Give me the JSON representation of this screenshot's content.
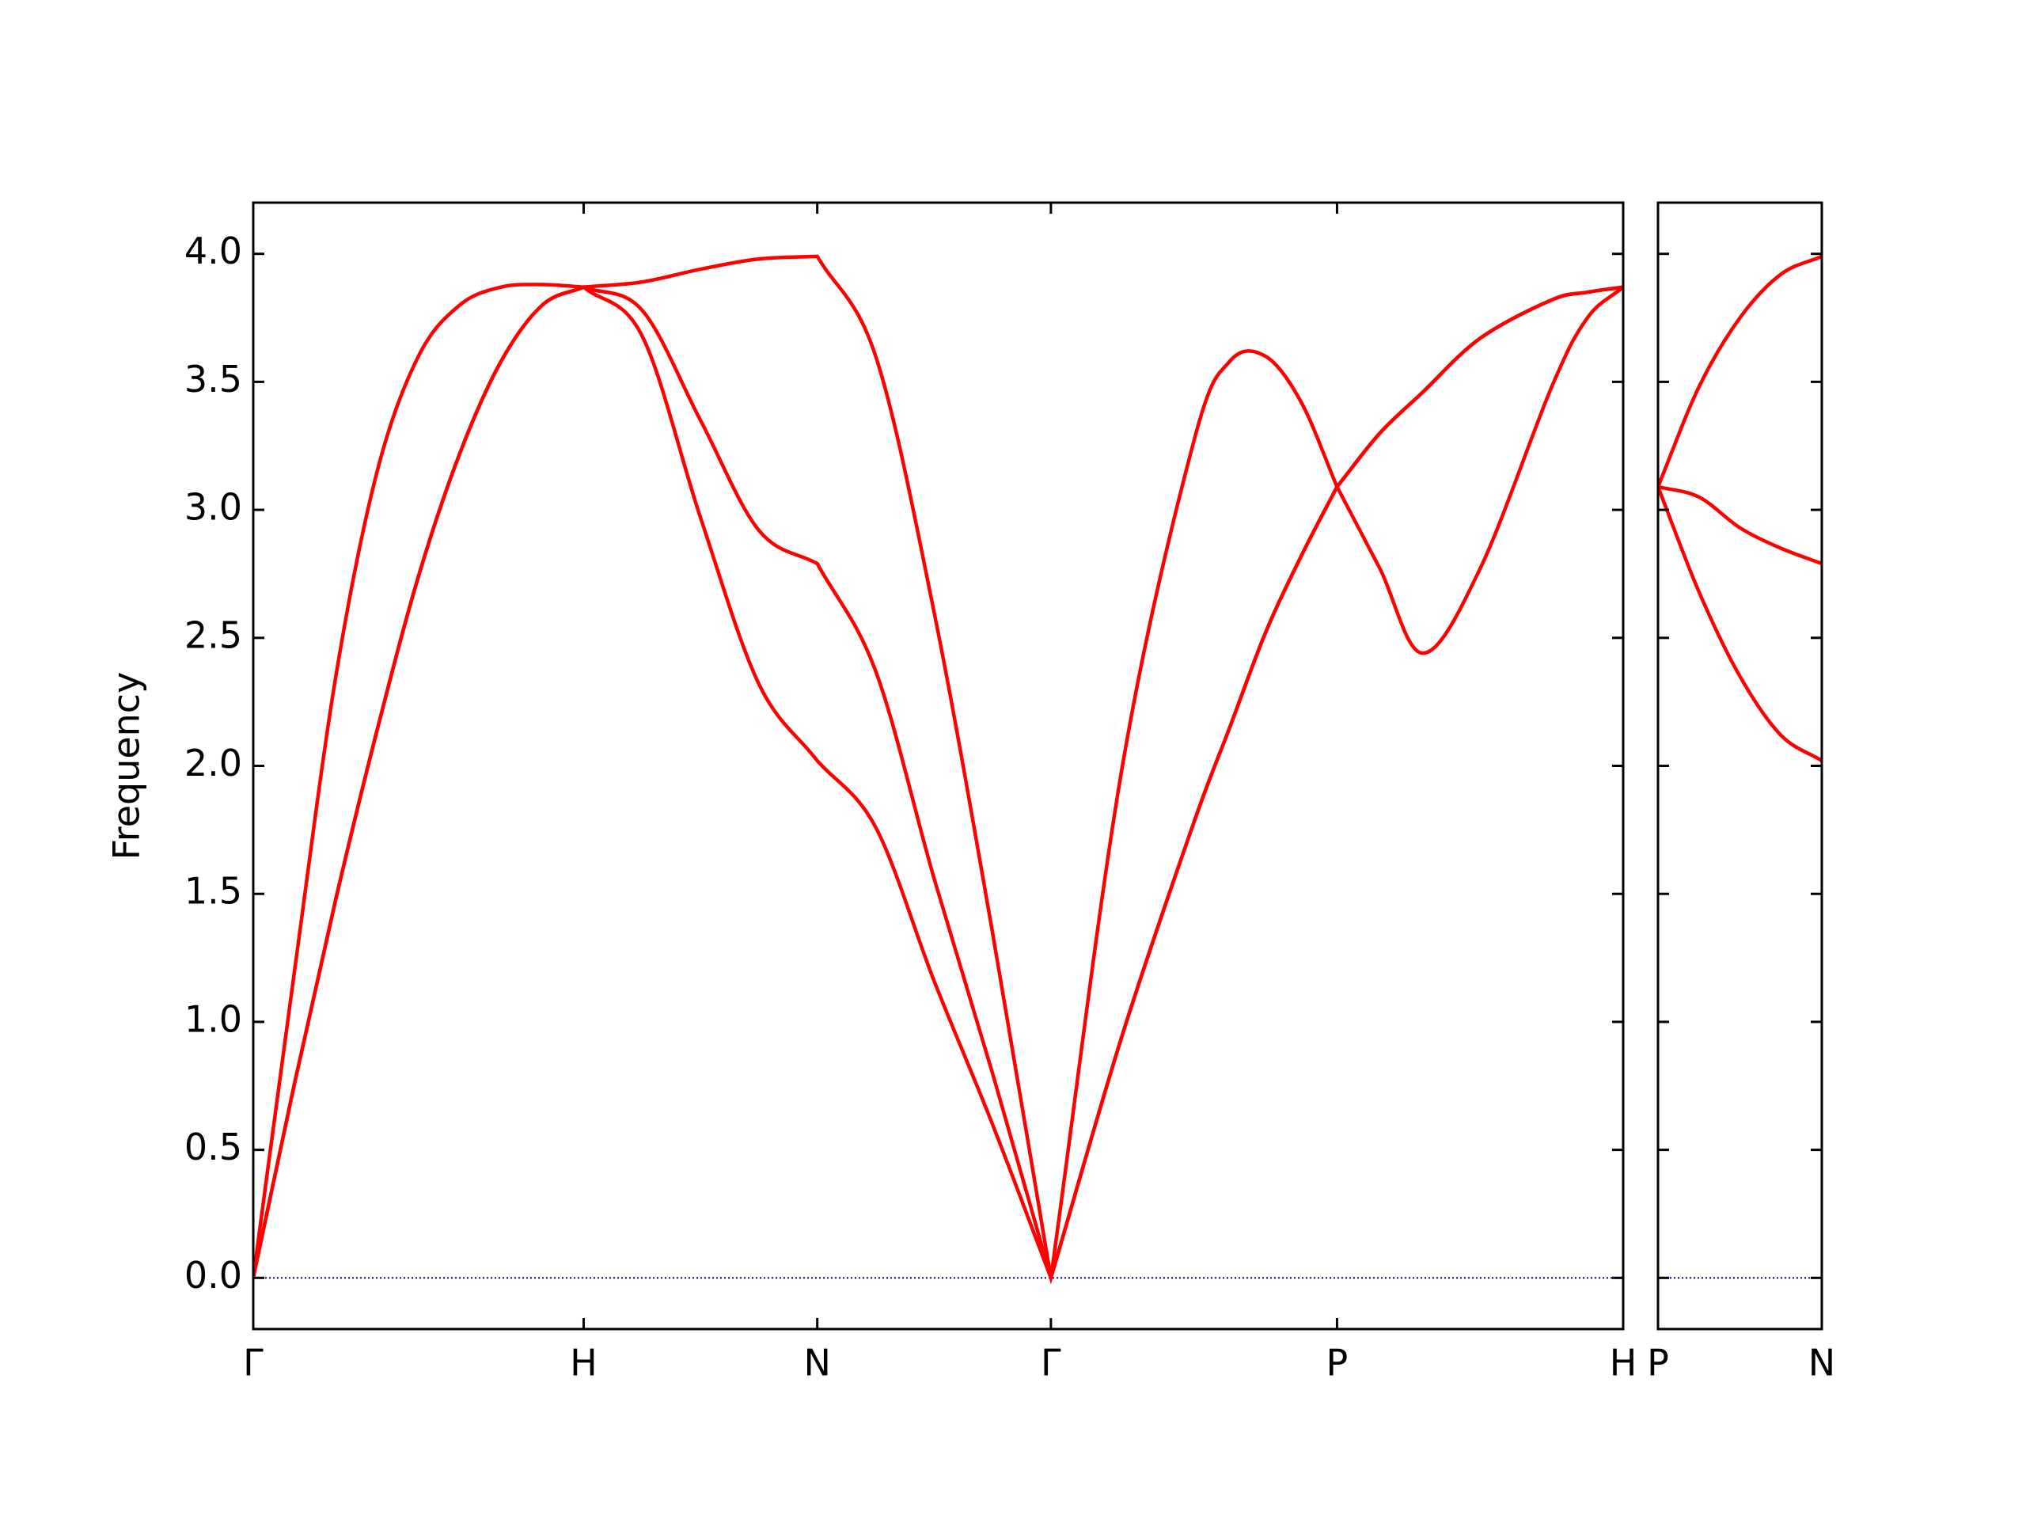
{
  "chart_data": [
    {
      "type": "line",
      "ylabel": "Frequency",
      "x": [
        0,
        0.125,
        0.25,
        0.375,
        0.5,
        0.625,
        0.75,
        0.875,
        1,
        1.1768,
        1.3536,
        1.5303,
        1.7071,
        1.8839,
        2.0607,
        2.2374,
        2.4142,
        2.6307,
        2.8472,
        2.9555,
        3.0637,
        3.172,
        3.2802,
        3.4101,
        3.54,
        3.7132,
        3.9298,
        4.038,
        4.1463
      ],
      "series": [
        {
          "color": "#ff0000",
          "values": [
            0,
            0.76,
            1.48,
            2.14,
            2.74,
            3.22,
            3.58,
            3.8,
            3.87,
            3.68,
            2.97,
            2.32,
            2.02,
            1.76,
            1.16,
            0.6,
            0,
            0.95,
            1.78,
            2.15,
            2.52,
            2.82,
            3.09,
            2.77,
            2.44,
            2.77,
            3.48,
            3.75,
            3.87
          ]
        },
        {
          "color": "#ff0000",
          "values": [
            0,
            0.76,
            1.48,
            2.14,
            2.74,
            3.22,
            3.58,
            3.8,
            3.87,
            3.78,
            3.35,
            2.92,
            2.79,
            2.37,
            1.56,
            0.8,
            0,
            0.95,
            1.78,
            2.15,
            2.52,
            2.82,
            3.09,
            3.3,
            3.46,
            3.67,
            3.82,
            3.85,
            3.87
          ]
        },
        {
          "color": "#ff0000",
          "values": [
            0,
            1.2,
            2.35,
            3.15,
            3.6,
            3.8,
            3.87,
            3.88,
            3.87,
            3.89,
            3.94,
            3.98,
            3.99,
            3.6,
            2.6,
            1.35,
            0,
            2.0,
            3.27,
            3.58,
            3.6,
            3.42,
            3.09,
            3.3,
            3.46,
            3.67,
            3.82,
            3.85,
            3.87
          ]
        }
      ],
      "xlim": [
        0,
        4.1463
      ],
      "xticks": [
        {
          "value": 0,
          "label": "Γ"
        },
        {
          "value": 1,
          "label": "H"
        },
        {
          "value": 1.7071,
          "label": "N"
        },
        {
          "value": 2.4142,
          "label": "Γ"
        },
        {
          "value": 3.2802,
          "label": "P"
        },
        {
          "value": 4.1463,
          "label": "H"
        }
      ],
      "ylim": [
        -0.2,
        4.2
      ],
      "yticks": [
        {
          "value": 0,
          "label": "0.0"
        },
        {
          "value": 0.5,
          "label": "0.5"
        },
        {
          "value": 1,
          "label": "1.0"
        },
        {
          "value": 1.5,
          "label": "1.5"
        },
        {
          "value": 2,
          "label": "2.0"
        },
        {
          "value": 2.5,
          "label": "2.5"
        },
        {
          "value": 3,
          "label": "3.0"
        },
        {
          "value": 3.5,
          "label": "3.5"
        },
        {
          "value": 4,
          "label": "4.0"
        }
      ],
      "ytick_labels": true,
      "zero_line_color": "#00008b"
    },
    {
      "type": "line",
      "x": [
        0,
        0.125,
        0.25,
        0.375,
        0.5
      ],
      "series": [
        {
          "color": "#ff0000",
          "values": [
            3.09,
            2.68,
            2.35,
            2.12,
            2.02
          ]
        },
        {
          "color": "#ff0000",
          "values": [
            3.09,
            3.05,
            2.93,
            2.85,
            2.79
          ]
        },
        {
          "color": "#ff0000",
          "values": [
            3.09,
            3.48,
            3.75,
            3.92,
            3.99
          ]
        }
      ],
      "xlim": [
        0,
        0.5
      ],
      "xticks": [
        {
          "value": 0,
          "label": "P"
        },
        {
          "value": 0.5,
          "label": "N"
        }
      ],
      "ylim": [
        -0.2,
        4.2
      ],
      "yticks": [
        0,
        0.5,
        1,
        1.5,
        2,
        2.5,
        3,
        3.5,
        4
      ],
      "ytick_labels": false,
      "zero_line_color": "#00008b"
    }
  ]
}
